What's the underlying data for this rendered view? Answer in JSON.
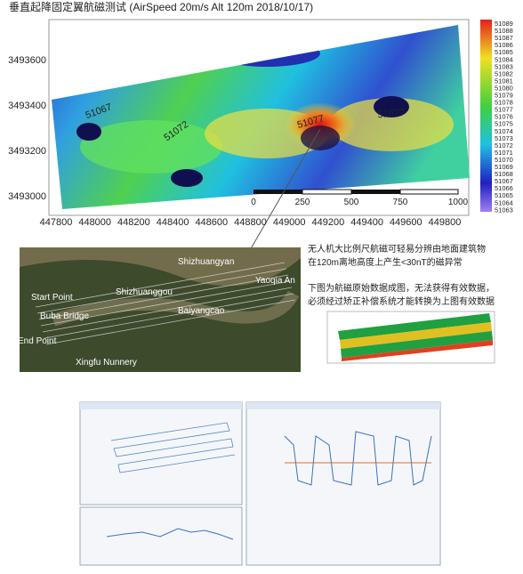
{
  "title": "垂直起降固定翼航磁测试   (AirSpeed 20m/s     Alt 120m 2018/10/17)",
  "map": {
    "yticks": [
      "3493600",
      "3493400",
      "3493200",
      "3493000"
    ],
    "xticks": [
      "447800",
      "448000",
      "448200",
      "448400",
      "448600",
      "448800",
      "449000",
      "449200",
      "449400",
      "449600",
      "449800"
    ],
    "colorbar": [
      "51089",
      "51088",
      "51087",
      "51086",
      "51085",
      "51084",
      "51083",
      "51082",
      "51081",
      "51080",
      "51079",
      "51078",
      "51077",
      "51076",
      "51075",
      "51074",
      "51073",
      "51072",
      "51071",
      "51070",
      "51069",
      "51068",
      "51067",
      "51066",
      "51065",
      "51064",
      "51063"
    ],
    "contours": [
      "51067",
      "51072",
      "51077",
      "51077"
    ],
    "scale": [
      "0",
      "250",
      "500",
      "750",
      "1000"
    ]
  },
  "satellite": {
    "labels": [
      "Shizhuangyan",
      "Yaoqia An",
      "Start Point",
      "Shizhuanggou",
      "Buba Bridge",
      "Baiyangcao",
      "End Point",
      "Xingfu Nunnery"
    ]
  },
  "notes": [
    "无人机大比例尺航磁可轻易分辨由地面建筑物",
    "在120m离地高度上产生<30nT的磁异常",
    "下图为航磁原始数据成图，无法获得有效数据，",
    "必须经过矫正补偿系统才能转换为上图有效数据"
  ]
}
